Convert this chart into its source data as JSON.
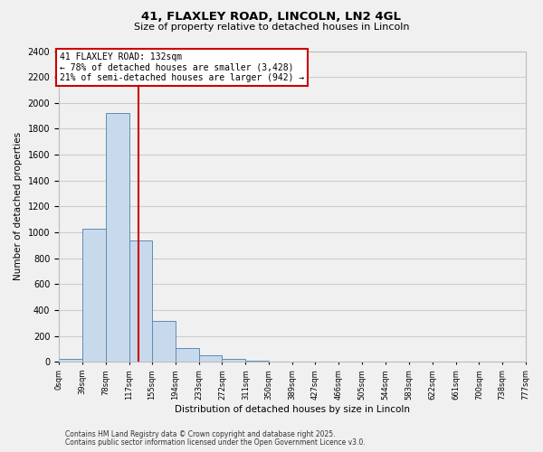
{
  "title_line1": "41, FLAXLEY ROAD, LINCOLN, LN2 4GL",
  "title_line2": "Size of property relative to detached houses in Lincoln",
  "xlabel": "Distribution of detached houses by size in Lincoln",
  "ylabel": "Number of detached properties",
  "bin_edges": [
    0,
    39,
    78,
    117,
    155,
    194,
    233,
    272,
    311,
    350,
    389,
    427,
    466,
    505,
    544,
    583,
    622,
    661,
    700,
    738,
    777
  ],
  "bin_counts": [
    20,
    1030,
    1920,
    940,
    315,
    105,
    50,
    20,
    10,
    0,
    0,
    0,
    0,
    0,
    0,
    0,
    0,
    0,
    0,
    0
  ],
  "bar_facecolor": "#c9d9ec",
  "bar_edgecolor": "#5b8db8",
  "property_line_x": 132,
  "property_line_color": "#cc0000",
  "annotation_box_text": "41 FLAXLEY ROAD: 132sqm\n← 78% of detached houses are smaller (3,428)\n21% of semi-detached houses are larger (942) →",
  "annotation_box_edgecolor": "#cc0000",
  "ylim": [
    0,
    2400
  ],
  "yticks": [
    0,
    200,
    400,
    600,
    800,
    1000,
    1200,
    1400,
    1600,
    1800,
    2000,
    2200,
    2400
  ],
  "grid_color": "#cccccc",
  "background_color": "#f0f0f0",
  "footnote1": "Contains HM Land Registry data © Crown copyright and database right 2025.",
  "footnote2": "Contains public sector information licensed under the Open Government Licence v3.0."
}
